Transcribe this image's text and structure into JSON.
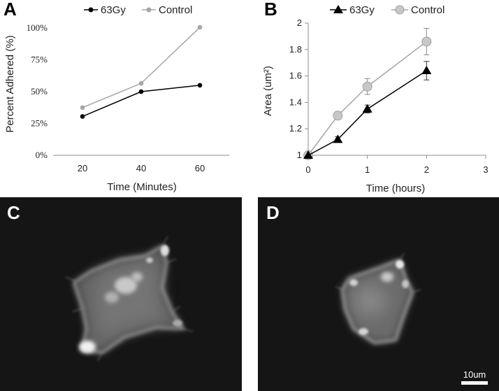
{
  "panels": {
    "a": {
      "letter": "A"
    },
    "b": {
      "letter": "B"
    },
    "c": {
      "letter": "C"
    },
    "d": {
      "letter": "D"
    }
  },
  "chart_data": [
    {
      "id": "A",
      "type": "line",
      "xlabel": "Time (Minutes)",
      "ylabel": "Percent Adhered (%)",
      "x": [
        20,
        40,
        60
      ],
      "xticks": [
        "20",
        "40",
        "60"
      ],
      "xlim": [
        10,
        70
      ],
      "yticks": [
        "0%",
        "25%",
        "50%",
        "75%",
        "100%"
      ],
      "ylim": [
        0,
        100
      ],
      "legend_position": "top",
      "series": [
        {
          "name": "63Gy",
          "color": "#000000",
          "values": [
            30.5,
            50,
            55
          ]
        },
        {
          "name": "Control",
          "color": "#a6a6a6",
          "values": [
            37.5,
            56.5,
            100.5
          ]
        }
      ]
    },
    {
      "id": "B",
      "type": "line",
      "xlabel": "Time (hours)",
      "ylabel": "Area (um²)",
      "x": [
        0,
        0.5,
        1,
        2
      ],
      "xticks": [
        "0",
        "1",
        "2",
        "3"
      ],
      "xlim": [
        0,
        3
      ],
      "yticks": [
        "1",
        "1.2",
        "1.4",
        "1.6",
        "1.8",
        "2"
      ],
      "ylim": [
        1,
        2
      ],
      "legend_position": "top",
      "series": [
        {
          "name": "63Gy",
          "color": "#000000",
          "marker": "triangle",
          "values": [
            1.0,
            1.12,
            1.35,
            1.64
          ],
          "errors": [
            0,
            0.02,
            0.03,
            0.07
          ]
        },
        {
          "name": "Control",
          "color": "#a6a6a6",
          "marker": "circle",
          "values": [
            1.0,
            1.3,
            1.52,
            1.86
          ],
          "errors": [
            0,
            0.03,
            0.06,
            0.1
          ]
        }
      ]
    }
  ],
  "micrographs": {
    "scale_bar_label": "10um"
  }
}
